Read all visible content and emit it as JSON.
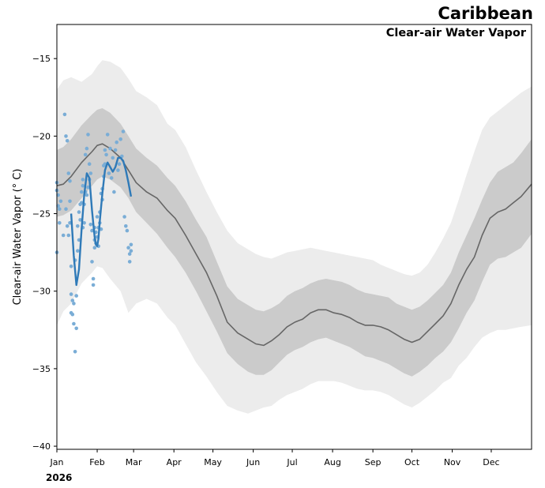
{
  "chart_data": {
    "type": "line",
    "title": "Caribbean",
    "subtitle": "Clear-air Water Vapor",
    "xlabel": "",
    "ylabel": "Clear-air Water Vapor (° C)",
    "year_label": "2026",
    "x_unit": "day of year",
    "xlim": [
      1,
      366
    ],
    "ylim": [
      -40.2,
      -12.8
    ],
    "y_ticks": [
      -40,
      -35,
      -30,
      -25,
      -20,
      -15
    ],
    "y_tick_labels": [
      "−40",
      "−35",
      "−30",
      "−25",
      "−20",
      "−15"
    ],
    "x_ticks": [
      1,
      32,
      60,
      91,
      121,
      152,
      182,
      213,
      244,
      274,
      305,
      335
    ],
    "x_tick_labels": [
      "Jan",
      "Feb",
      "Mar",
      "Apr",
      "May",
      "Jun",
      "Jul",
      "Aug",
      "Sep",
      "Oct",
      "Nov",
      "Dec"
    ],
    "grid": false,
    "colors": {
      "outer_band": "#ececec",
      "inner_band": "#cbcbcb",
      "climatology_line": "#666666",
      "current_line": "#2f7ab8",
      "observations": "#7aadd6"
    },
    "series": [
      {
        "name": "Climatology mean",
        "x": [
          1,
          6,
          12,
          20,
          28,
          32,
          36,
          42,
          50,
          56,
          62,
          70,
          78,
          86,
          92,
          100,
          108,
          116,
          124,
          132,
          140,
          148,
          154,
          160,
          166,
          172,
          178,
          184,
          190,
          196,
          202,
          208,
          214,
          220,
          226,
          232,
          238,
          244,
          250,
          256,
          262,
          268,
          274,
          280,
          286,
          292,
          298,
          304,
          310,
          316,
          322,
          328,
          334,
          340,
          346,
          352,
          358,
          366
        ],
        "values": [
          -23.2,
          -23.1,
          -22.6,
          -21.7,
          -21.0,
          -20.6,
          -20.5,
          -20.8,
          -21.4,
          -22.2,
          -23.0,
          -23.6,
          -24.0,
          -24.8,
          -25.3,
          -26.4,
          -27.6,
          -28.8,
          -30.3,
          -32.0,
          -32.7,
          -33.1,
          -33.4,
          -33.5,
          -33.2,
          -32.8,
          -32.3,
          -32.0,
          -31.8,
          -31.4,
          -31.2,
          -31.2,
          -31.4,
          -31.5,
          -31.7,
          -32.0,
          -32.2,
          -32.2,
          -32.3,
          -32.5,
          -32.8,
          -33.1,
          -33.3,
          -33.1,
          -32.6,
          -32.1,
          -31.6,
          -30.8,
          -29.6,
          -28.6,
          -27.8,
          -26.4,
          -25.3,
          -24.9,
          -24.7,
          -24.3,
          -23.9,
          -23.1
        ],
        "band_inner_lower": [
          -25.2,
          -25.1,
          -24.8,
          -24.0,
          -23.2,
          -22.8,
          -22.6,
          -22.8,
          -23.3,
          -24.0,
          -24.9,
          -25.6,
          -26.3,
          -27.2,
          -27.8,
          -28.8,
          -30.0,
          -31.3,
          -32.6,
          -34.0,
          -34.7,
          -35.2,
          -35.4,
          -35.4,
          -35.1,
          -34.6,
          -34.1,
          -33.8,
          -33.6,
          -33.3,
          -33.1,
          -33.0,
          -33.2,
          -33.4,
          -33.6,
          -33.9,
          -34.2,
          -34.3,
          -34.5,
          -34.7,
          -35.0,
          -35.3,
          -35.5,
          -35.2,
          -34.8,
          -34.3,
          -33.9,
          -33.3,
          -32.4,
          -31.4,
          -30.6,
          -29.4,
          -28.3,
          -27.9,
          -27.8,
          -27.5,
          -27.2,
          -26.3
        ],
        "band_inner_upper": [
          -20.9,
          -20.7,
          -20.2,
          -19.3,
          -18.6,
          -18.3,
          -18.2,
          -18.5,
          -19.2,
          -20.0,
          -20.8,
          -21.4,
          -21.9,
          -22.7,
          -23.2,
          -24.2,
          -25.4,
          -26.5,
          -28.1,
          -29.7,
          -30.5,
          -30.9,
          -31.2,
          -31.3,
          -31.1,
          -30.8,
          -30.3,
          -30.0,
          -29.8,
          -29.5,
          -29.3,
          -29.2,
          -29.3,
          -29.4,
          -29.6,
          -29.9,
          -30.1,
          -30.2,
          -30.3,
          -30.4,
          -30.8,
          -31.0,
          -31.2,
          -31.0,
          -30.6,
          -30.1,
          -29.6,
          -28.8,
          -27.5,
          -26.4,
          -25.3,
          -24.1,
          -23.0,
          -22.3,
          -22.0,
          -21.7,
          -21.1,
          -20.2
        ],
        "band_outer_lower": [
          -32.2,
          -31.3,
          -30.8,
          -29.5,
          -28.8,
          -28.4,
          -28.5,
          -29.2,
          -30.0,
          -31.4,
          -30.8,
          -30.5,
          -30.8,
          -31.7,
          -32.2,
          -33.4,
          -34.6,
          -35.5,
          -36.5,
          -37.4,
          -37.7,
          -37.9,
          -37.7,
          -37.5,
          -37.4,
          -37.0,
          -36.7,
          -36.5,
          -36.3,
          -36.0,
          -35.8,
          -35.8,
          -35.8,
          -35.9,
          -36.1,
          -36.3,
          -36.4,
          -36.4,
          -36.5,
          -36.7,
          -37.0,
          -37.3,
          -37.5,
          -37.2,
          -36.8,
          -36.4,
          -35.9,
          -35.6,
          -34.8,
          -34.3,
          -33.6,
          -33.0,
          -32.7,
          -32.5,
          -32.5,
          -32.4,
          -32.3,
          -32.2
        ],
        "band_outer_upper": [
          -17.0,
          -16.4,
          -16.2,
          -16.5,
          -16.0,
          -15.5,
          -15.1,
          -15.2,
          -15.6,
          -16.3,
          -17.1,
          -17.5,
          -18.0,
          -19.2,
          -19.6,
          -20.7,
          -22.2,
          -23.6,
          -24.9,
          -26.1,
          -26.9,
          -27.3,
          -27.6,
          -27.8,
          -27.9,
          -27.7,
          -27.5,
          -27.4,
          -27.3,
          -27.2,
          -27.3,
          -27.4,
          -27.5,
          -27.6,
          -27.7,
          -27.8,
          -27.9,
          -28.0,
          -28.3,
          -28.5,
          -28.7,
          -28.9,
          -29.0,
          -28.8,
          -28.3,
          -27.5,
          -26.6,
          -25.6,
          -24.1,
          -22.5,
          -21.0,
          -19.6,
          -18.8,
          -18.4,
          -18.0,
          -17.6,
          -17.2,
          -16.8
        ]
      },
      {
        "name": "2026 daily",
        "x": [
          12,
          14,
          16,
          18,
          20,
          22,
          24,
          26,
          28,
          30,
          31,
          32,
          33,
          34,
          36,
          38,
          40,
          42,
          44,
          46,
          48,
          50,
          52,
          54,
          56,
          58
        ],
        "values": [
          -25.0,
          -27.7,
          -29.6,
          -28.6,
          -26.0,
          -23.8,
          -22.4,
          -22.7,
          -24.8,
          -26.5,
          -27.0,
          -27.1,
          -26.6,
          -25.5,
          -23.7,
          -22.2,
          -21.7,
          -22.0,
          -22.3,
          -22.0,
          -21.4,
          -21.4,
          -21.6,
          -22.2,
          -23.0,
          -23.9
        ]
      }
    ],
    "scatter": {
      "name": "2026 observations",
      "x": [
        1,
        1,
        1,
        2,
        2,
        3,
        3,
        4,
        6,
        7,
        8,
        8,
        9,
        9,
        10,
        10,
        11,
        11,
        11,
        12,
        12,
        12,
        13,
        13,
        14,
        14,
        15,
        15,
        16,
        16,
        17,
        17,
        18,
        18,
        19,
        19,
        20,
        20,
        21,
        21,
        21,
        22,
        22,
        23,
        23,
        24,
        24,
        25,
        25,
        26,
        26,
        27,
        27,
        28,
        28,
        29,
        29,
        30,
        30,
        30,
        31,
        31,
        32,
        32,
        33,
        33,
        34,
        34,
        35,
        35,
        36,
        36,
        37,
        37,
        38,
        38,
        39,
        40,
        41,
        42,
        43,
        44,
        45,
        46,
        47,
        48,
        49,
        50,
        51,
        52,
        53,
        54,
        55,
        56,
        57,
        57,
        58,
        58
      ],
      "values": [
        -23.0,
        -23.5,
        -27.5,
        -24.5,
        -23.8,
        -24.7,
        -25.6,
        -24.2,
        -26.4,
        -18.6,
        -20.0,
        -24.7,
        -20.3,
        -25.8,
        -22.4,
        -26.4,
        -22.9,
        -24.2,
        -25.6,
        -28.4,
        -30.2,
        -31.4,
        -30.6,
        -31.5,
        -30.8,
        -32.1,
        -33.9,
        -28.0,
        -32.4,
        -30.3,
        -27.4,
        -25.8,
        -24.9,
        -26.7,
        -24.4,
        -25.4,
        -23.6,
        -24.3,
        -23.2,
        -25.9,
        -22.8,
        -24.4,
        -25.6,
        -21.2,
        -23.6,
        -20.8,
        -23.8,
        -19.9,
        -23.3,
        -22.8,
        -21.8,
        -25.7,
        -22.4,
        -28.1,
        -26.1,
        -29.6,
        -29.2,
        -25.9,
        -26.7,
        -27.2,
        -26.2,
        -26.9,
        -26.5,
        -25.2,
        -25.9,
        -27.1,
        -25.6,
        -24.9,
        -23.7,
        -26.0,
        -24.1,
        -23.4,
        -22.6,
        -21.9,
        -21.8,
        -20.9,
        -21.2,
        -19.9,
        -22.4,
        -20.8,
        -22.7,
        -21.4,
        -23.6,
        -20.9,
        -20.4,
        -22.2,
        -21.8,
        -20.2,
        -21.3,
        -19.7,
        -25.2,
        -25.8,
        -26.1,
        -27.2,
        -27.6,
        -28.1,
        -27.0,
        -27.4
      ]
    }
  }
}
